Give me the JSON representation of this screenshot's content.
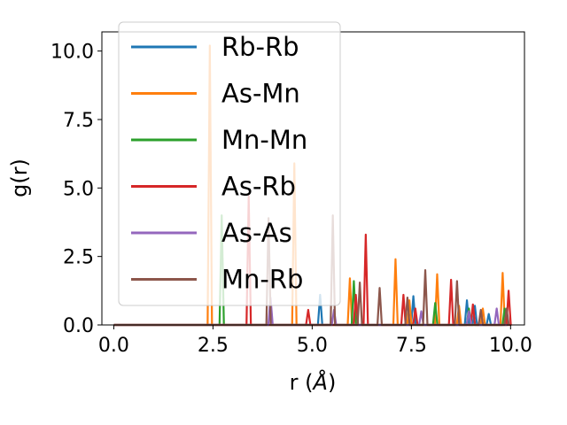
{
  "chart_data": {
    "type": "line",
    "title": "",
    "xlabel": "r (",
    "xlabel_unit": "Å",
    "xlabel_close": ")",
    "ylabel": "g(r)",
    "xlim": [
      -0.3,
      10.35
    ],
    "ylim": [
      0,
      10.7
    ],
    "xticks": [
      0.0,
      2.5,
      5.0,
      7.5,
      10.0
    ],
    "xtick_labels": [
      "0.0",
      "2.5",
      "5.0",
      "7.5",
      "10.0"
    ],
    "yticks": [
      0.0,
      2.5,
      5.0,
      7.5,
      10.0
    ],
    "ytick_labels": [
      "0.0",
      "2.5",
      "5.0",
      "7.5",
      "10.0"
    ],
    "grid": false,
    "legend_position": "upper-left",
    "x_range": [
      0,
      9.9
    ],
    "series": [
      {
        "name": "Rb-Rb",
        "color": "#1f77b4",
        "peaks": [
          [
            5.2,
            1.1
          ],
          [
            7.55,
            1.05
          ],
          [
            8.9,
            0.9
          ],
          [
            9.1,
            0.7
          ],
          [
            9.45,
            0.4
          ]
        ]
      },
      {
        "name": "As-Mn",
        "color": "#ff7f0e",
        "peaks": [
          [
            2.42,
            10.2
          ],
          [
            4.55,
            5.9
          ],
          [
            5.95,
            1.7
          ],
          [
            7.1,
            2.4
          ],
          [
            7.45,
            0.9
          ],
          [
            8.15,
            1.85
          ],
          [
            8.7,
            0.7
          ],
          [
            9.3,
            0.6
          ],
          [
            9.8,
            1.9
          ]
        ]
      },
      {
        "name": "Mn-Mn",
        "color": "#2ca02c",
        "peaks": [
          [
            2.72,
            4.0
          ],
          [
            6.05,
            1.6
          ],
          [
            8.1,
            0.8
          ],
          [
            8.95,
            0.6
          ],
          [
            9.85,
            0.6
          ]
        ]
      },
      {
        "name": "As-Rb",
        "color": "#d62728",
        "peaks": [
          [
            3.4,
            4.7
          ],
          [
            4.9,
            0.55
          ],
          [
            6.1,
            1.1
          ],
          [
            6.35,
            3.3
          ],
          [
            7.3,
            1.1
          ],
          [
            7.6,
            0.6
          ],
          [
            8.5,
            1.65
          ],
          [
            9.05,
            0.75
          ],
          [
            9.95,
            1.25
          ]
        ]
      },
      {
        "name": "As-As",
        "color": "#9467bd",
        "peaks": [
          [
            3.95,
            1.0
          ],
          [
            5.55,
            0.55
          ],
          [
            7.75,
            0.5
          ],
          [
            8.95,
            0.5
          ],
          [
            9.65,
            0.6
          ]
        ]
      },
      {
        "name": "Mn-Rb",
        "color": "#8c564b",
        "peaks": [
          [
            3.9,
            3.9
          ],
          [
            5.52,
            4.0
          ],
          [
            6.2,
            1.55
          ],
          [
            6.7,
            1.35
          ],
          [
            7.4,
            1.0
          ],
          [
            7.85,
            2.0
          ],
          [
            8.65,
            1.6
          ],
          [
            9.25,
            0.55
          ],
          [
            9.9,
            0.6
          ]
        ]
      }
    ]
  }
}
